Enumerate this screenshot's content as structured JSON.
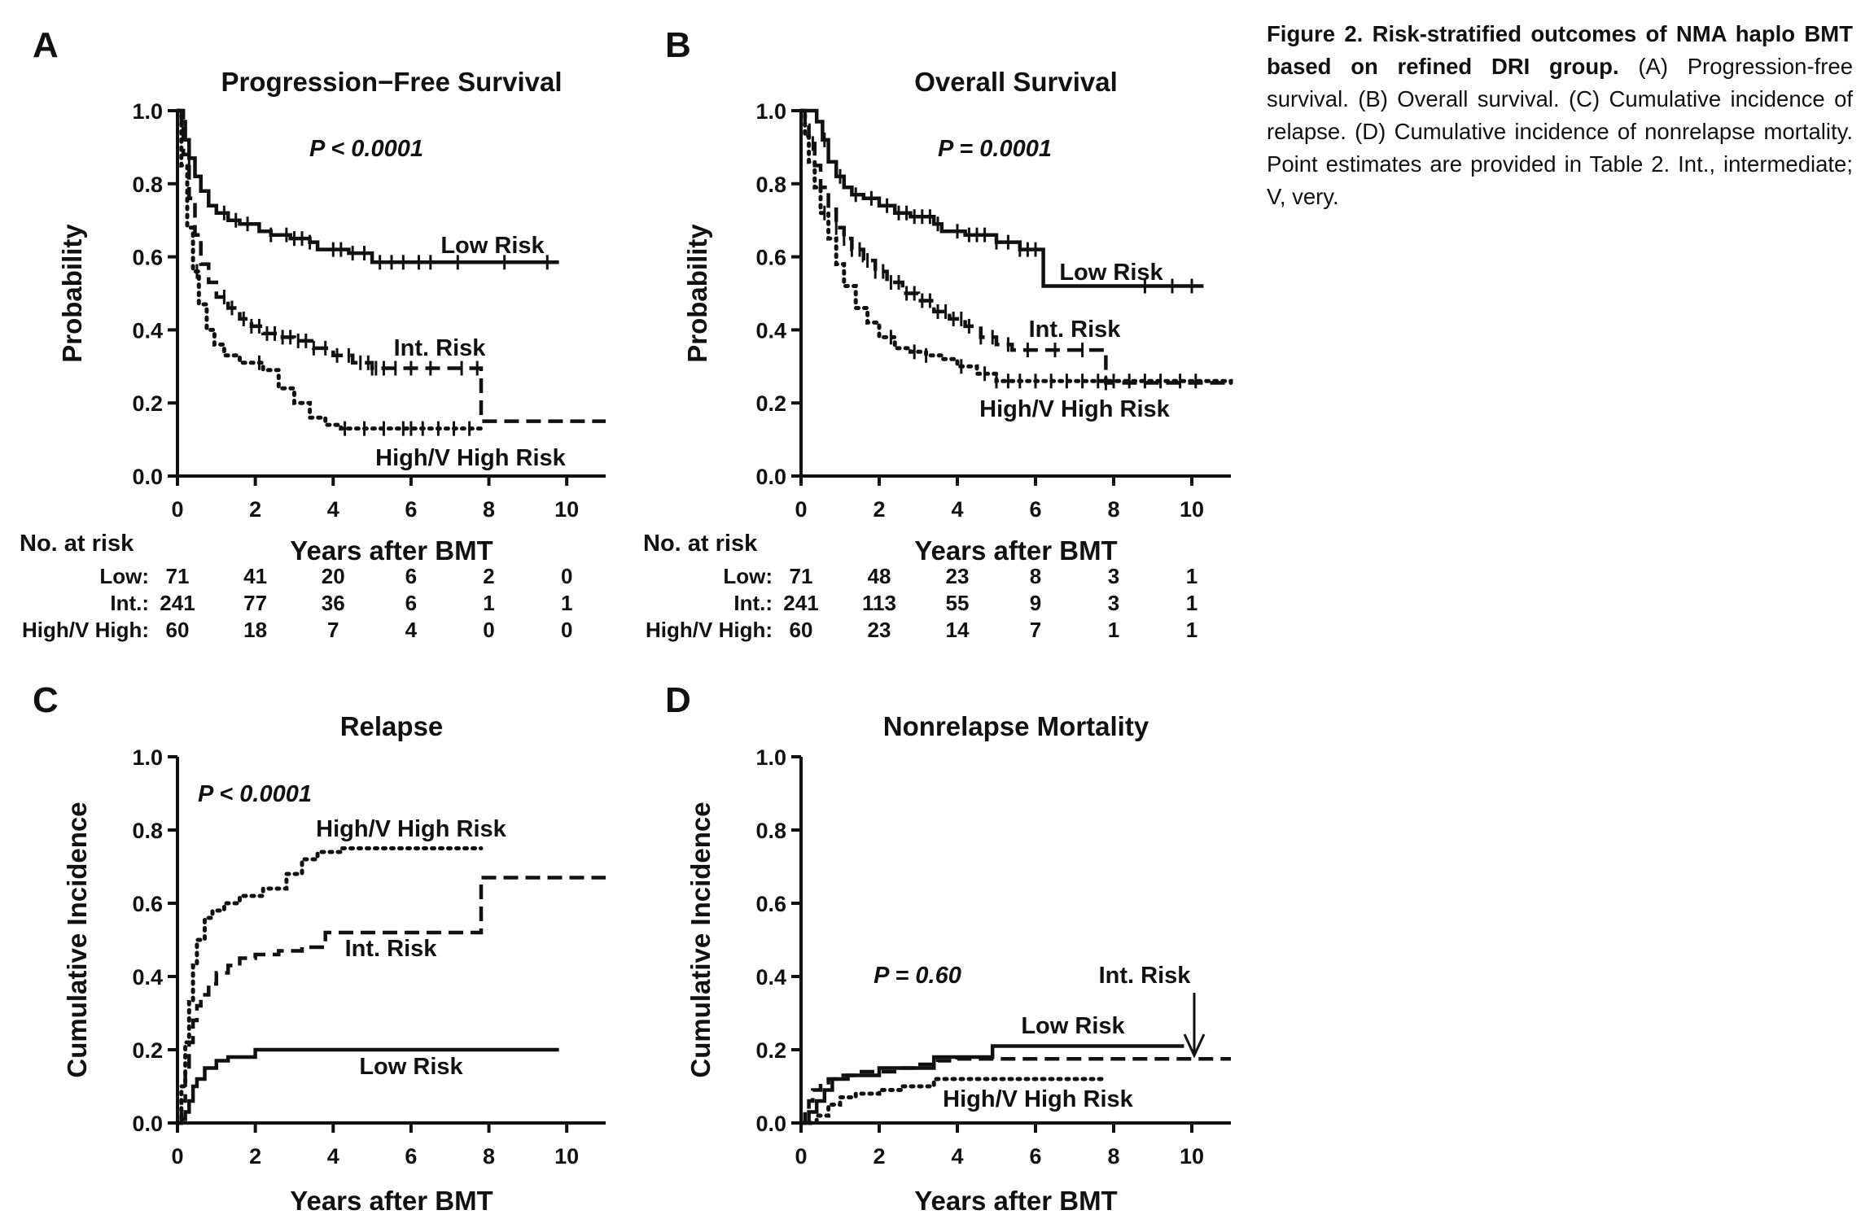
{
  "caption": {
    "bold": "Figure 2. Risk-stratified outcomes of NMA haplo BMT based on refined DRI group.",
    "text": " (A) Progression-free survival. (B) Overall survival. (C) Cumulative incidence of relapse. (D) Cumulative incidence of nonrelapse mortality. Point estimates are provided in Table 2. Int., intermediate; V, very."
  },
  "colors": {
    "ink": "#111111",
    "background": "#ffffff"
  },
  "risk_table_header": "No. at risk",
  "chart_data": [
    {
      "panel": "A",
      "type": "line",
      "step": true,
      "title": "Progression−Free Survival",
      "xlabel": "Years after BMT",
      "ylabel": "Probability",
      "xlim": [
        0,
        11
      ],
      "ylim": [
        0,
        1
      ],
      "x_ticks": [
        "0",
        "2",
        "4",
        "6",
        "8",
        "10"
      ],
      "y_ticks": [
        "0.0",
        "0.2",
        "0.4",
        "0.6",
        "0.8",
        "1.0"
      ],
      "pvalue": "P < 0.0001",
      "series": [
        {
          "name": "Low Risk",
          "style": "solid",
          "x": [
            0,
            0.1,
            0.2,
            0.3,
            0.45,
            0.6,
            0.8,
            1.0,
            1.3,
            1.6,
            2.1,
            2.4,
            2.9,
            3.4,
            3.6,
            4.4,
            5.0,
            9.8
          ],
          "y": [
            1.0,
            0.97,
            0.92,
            0.87,
            0.82,
            0.78,
            0.74,
            0.72,
            0.7,
            0.69,
            0.67,
            0.66,
            0.65,
            0.64,
            0.62,
            0.61,
            0.585,
            0.585
          ],
          "censor_x": [
            0.3,
            1.2,
            1.5,
            1.8,
            2.4,
            2.8,
            3.0,
            3.2,
            3.4,
            4.0,
            4.2,
            4.5,
            4.8,
            5.2,
            5.5,
            5.8,
            6.2,
            6.5,
            7.2,
            8.4,
            9.5
          ]
        },
        {
          "name": "Int. Risk",
          "style": "dashed",
          "x": [
            0,
            0.15,
            0.3,
            0.45,
            0.6,
            0.8,
            1.0,
            1.3,
            1.6,
            1.9,
            2.2,
            2.6,
            3.0,
            3.5,
            4.0,
            4.5,
            5.0,
            5.5,
            7.8,
            11.0
          ],
          "y": [
            1.0,
            0.88,
            0.76,
            0.66,
            0.58,
            0.53,
            0.49,
            0.46,
            0.43,
            0.41,
            0.39,
            0.38,
            0.37,
            0.35,
            0.33,
            0.31,
            0.295,
            0.295,
            0.15,
            0.15
          ],
          "censor_x": [
            1.2,
            1.4,
            1.7,
            1.9,
            2.1,
            2.3,
            2.5,
            2.7,
            2.9,
            3.1,
            3.3,
            3.5,
            3.8,
            4.1,
            4.4,
            4.7,
            4.9,
            5.0,
            5.1,
            5.3,
            5.6,
            6.0,
            6.5,
            7.3,
            7.7
          ]
        },
        {
          "name": "High/V High Risk",
          "style": "dotted",
          "x": [
            0,
            0.1,
            0.25,
            0.4,
            0.55,
            0.75,
            0.95,
            1.2,
            1.6,
            2.2,
            2.6,
            3.0,
            3.4,
            3.8,
            4.2,
            7.8
          ],
          "y": [
            1.0,
            0.85,
            0.68,
            0.56,
            0.47,
            0.4,
            0.36,
            0.33,
            0.31,
            0.29,
            0.24,
            0.2,
            0.16,
            0.14,
            0.13,
            0.13
          ],
          "censor_x": [
            0.5,
            2.1,
            4.3,
            4.8,
            5.3,
            5.8,
            6.0,
            6.3,
            6.7,
            7.1,
            7.5
          ]
        }
      ],
      "labels": [
        "Low Risk",
        "Int. Risk",
        "High/V High Risk"
      ],
      "risk_table": {
        "rows": [
          {
            "label": "Low:",
            "values": [
              "71",
              "41",
              "20",
              "6",
              "2",
              "0"
            ]
          },
          {
            "label": "Int.:",
            "values": [
              "241",
              "77",
              "36",
              "6",
              "1",
              "1"
            ]
          },
          {
            "label": "High/V High:",
            "values": [
              "60",
              "18",
              "7",
              "4",
              "0",
              "0"
            ]
          }
        ]
      }
    },
    {
      "panel": "B",
      "type": "line",
      "step": true,
      "title": "Overall Survival",
      "xlabel": "Years after BMT",
      "ylabel": "Probability",
      "xlim": [
        0,
        11
      ],
      "ylim": [
        0,
        1
      ],
      "x_ticks": [
        "0",
        "2",
        "4",
        "6",
        "8",
        "10"
      ],
      "y_ticks": [
        "0.0",
        "0.2",
        "0.4",
        "0.6",
        "0.8",
        "1.0"
      ],
      "pvalue": "P = 0.0001",
      "series": [
        {
          "name": "Low Risk",
          "style": "solid",
          "x": [
            0,
            0.4,
            0.55,
            0.7,
            0.9,
            1.1,
            1.3,
            1.6,
            2.0,
            2.4,
            2.8,
            3.4,
            3.6,
            4.2,
            5.0,
            5.6,
            6.2,
            10.3
          ],
          "y": [
            1.0,
            0.97,
            0.92,
            0.86,
            0.82,
            0.79,
            0.77,
            0.76,
            0.74,
            0.72,
            0.71,
            0.69,
            0.67,
            0.66,
            0.64,
            0.62,
            0.52,
            0.52
          ],
          "censor_x": [
            0.6,
            1.0,
            1.4,
            1.8,
            2.2,
            2.5,
            2.7,
            2.9,
            3.1,
            3.3,
            3.5,
            4.0,
            4.3,
            4.5,
            4.7,
            5.0,
            5.3,
            5.6,
            5.8,
            6.0,
            8.8,
            9.5,
            10.0
          ]
        },
        {
          "name": "Int. Risk",
          "style": "dashed",
          "x": [
            0,
            0.1,
            0.2,
            0.35,
            0.5,
            0.7,
            0.9,
            1.1,
            1.3,
            1.6,
            1.9,
            2.2,
            2.6,
            3.0,
            3.4,
            3.8,
            4.2,
            4.6,
            5.0,
            5.4,
            7.8,
            11.0
          ],
          "y": [
            1.0,
            0.96,
            0.91,
            0.85,
            0.79,
            0.73,
            0.68,
            0.65,
            0.62,
            0.59,
            0.56,
            0.53,
            0.5,
            0.48,
            0.45,
            0.43,
            0.41,
            0.38,
            0.36,
            0.345,
            0.255,
            0.255
          ],
          "censor_x": [
            0.3,
            0.9,
            1.1,
            1.3,
            1.5,
            1.7,
            1.9,
            2.1,
            2.3,
            2.5,
            2.7,
            2.9,
            3.1,
            3.3,
            3.5,
            3.7,
            3.9,
            4.1,
            4.3,
            4.6,
            4.9,
            5.3,
            5.8,
            6.5,
            7.2,
            7.8
          ]
        },
        {
          "name": "High/V High Risk",
          "style": "dotted",
          "x": [
            0,
            0.1,
            0.2,
            0.35,
            0.5,
            0.7,
            0.9,
            1.1,
            1.4,
            1.7,
            2.0,
            2.4,
            2.8,
            3.2,
            3.6,
            4.0,
            4.5,
            5.0,
            11.0
          ],
          "y": [
            1.0,
            0.93,
            0.86,
            0.79,
            0.72,
            0.65,
            0.58,
            0.52,
            0.46,
            0.42,
            0.38,
            0.35,
            0.34,
            0.33,
            0.32,
            0.3,
            0.28,
            0.26,
            0.255
          ],
          "censor_x": [
            0.6,
            2.3,
            2.9,
            3.2,
            4.1,
            4.7,
            5.0,
            5.3,
            5.6,
            6.0,
            6.4,
            6.8,
            7.2,
            7.6,
            8.0,
            8.4,
            8.8,
            9.2,
            9.7,
            10.1
          ]
        }
      ],
      "labels": [
        "Low Risk",
        "Int. Risk",
        "High/V High Risk"
      ],
      "risk_table": {
        "rows": [
          {
            "label": "Low:",
            "values": [
              "71",
              "48",
              "23",
              "8",
              "3",
              "1"
            ]
          },
          {
            "label": "Int.:",
            "values": [
              "241",
              "113",
              "55",
              "9",
              "3",
              "1"
            ]
          },
          {
            "label": "High/V High:",
            "values": [
              "60",
              "23",
              "14",
              "7",
              "1",
              "1"
            ]
          }
        ]
      }
    },
    {
      "panel": "C",
      "type": "line",
      "step": true,
      "title": "Relapse",
      "xlabel": "Years after BMT",
      "ylabel": "Cumulative Incidence",
      "xlim": [
        0,
        11
      ],
      "ylim": [
        0,
        1
      ],
      "x_ticks": [
        "0",
        "2",
        "4",
        "6",
        "8",
        "10"
      ],
      "y_ticks": [
        "0.0",
        "0.2",
        "0.4",
        "0.6",
        "0.8",
        "1.0"
      ],
      "pvalue": "P < 0.0001",
      "series": [
        {
          "name": "Low Risk",
          "style": "solid",
          "x": [
            0,
            0.1,
            0.2,
            0.3,
            0.4,
            0.5,
            0.7,
            1.0,
            1.3,
            2.0,
            9.8
          ],
          "y": [
            0.0,
            0.01,
            0.03,
            0.06,
            0.1,
            0.12,
            0.15,
            0.17,
            0.18,
            0.2,
            0.2
          ]
        },
        {
          "name": "Int. Risk",
          "style": "dashed",
          "x": [
            0,
            0.1,
            0.2,
            0.3,
            0.4,
            0.5,
            0.6,
            0.8,
            1.0,
            1.3,
            1.6,
            2.0,
            2.6,
            3.2,
            3.8,
            7.8,
            11.0
          ],
          "y": [
            0.0,
            0.06,
            0.14,
            0.22,
            0.28,
            0.32,
            0.35,
            0.38,
            0.41,
            0.43,
            0.45,
            0.46,
            0.47,
            0.48,
            0.52,
            0.67,
            0.67
          ]
        },
        {
          "name": "High/V High Risk",
          "style": "dotted",
          "x": [
            0,
            0.1,
            0.2,
            0.3,
            0.4,
            0.5,
            0.7,
            0.9,
            1.2,
            1.6,
            2.2,
            2.8,
            3.2,
            3.6,
            4.2,
            7.8
          ],
          "y": [
            0.0,
            0.1,
            0.22,
            0.33,
            0.43,
            0.5,
            0.56,
            0.58,
            0.6,
            0.62,
            0.64,
            0.68,
            0.72,
            0.74,
            0.75,
            0.75
          ]
        }
      ],
      "labels": [
        "High/V High Risk",
        "Int. Risk",
        "Low Risk"
      ]
    },
    {
      "panel": "D",
      "type": "line",
      "step": true,
      "title": "Nonrelapse Mortality",
      "xlabel": "Years after BMT",
      "ylabel": "Cumulative Incidence",
      "xlim": [
        0,
        11
      ],
      "ylim": [
        0,
        1
      ],
      "x_ticks": [
        "0",
        "2",
        "4",
        "6",
        "8",
        "10"
      ],
      "y_ticks": [
        "0.0",
        "0.2",
        "0.4",
        "0.6",
        "0.8",
        "1.0"
      ],
      "pvalue": "P = 0.60",
      "series": [
        {
          "name": "Low Risk",
          "style": "solid",
          "x": [
            0,
            0.2,
            0.4,
            0.6,
            0.8,
            1.2,
            2.0,
            3.4,
            4.9,
            9.8
          ],
          "y": [
            0.0,
            0.03,
            0.06,
            0.09,
            0.12,
            0.13,
            0.15,
            0.18,
            0.21,
            0.21
          ]
        },
        {
          "name": "Int. Risk",
          "style": "dashed",
          "x": [
            0,
            0.1,
            0.2,
            0.3,
            0.5,
            0.7,
            1.0,
            1.5,
            2.0,
            2.5,
            3.0,
            3.5,
            4.0,
            11.0
          ],
          "y": [
            0.0,
            0.03,
            0.06,
            0.09,
            0.11,
            0.12,
            0.13,
            0.14,
            0.14,
            0.15,
            0.16,
            0.17,
            0.175,
            0.175
          ]
        },
        {
          "name": "High/V High Risk",
          "style": "dotted",
          "x": [
            0,
            0.4,
            0.7,
            1.0,
            1.4,
            2.0,
            2.6,
            3.4,
            7.8
          ],
          "y": [
            0.0,
            0.02,
            0.05,
            0.07,
            0.08,
            0.09,
            0.1,
            0.12,
            0.12
          ]
        }
      ],
      "labels": [
        "Low Risk",
        "High/V High Risk"
      ],
      "arrow_label": "Int. Risk"
    }
  ]
}
